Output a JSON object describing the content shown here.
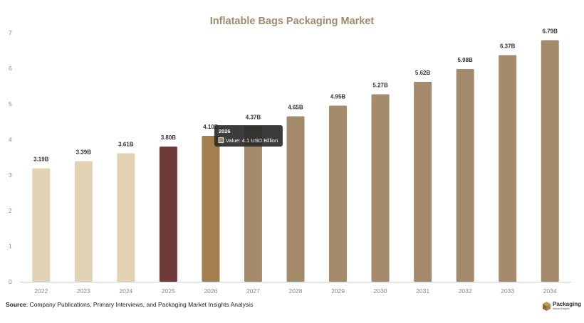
{
  "chart_data": {
    "type": "bar",
    "title": "Inflatable Bags Packaging Market",
    "categories": [
      "2022",
      "2023",
      "2024",
      "2025",
      "2026",
      "2027",
      "2028",
      "2029",
      "2030",
      "2031",
      "2032",
      "2033",
      "2034"
    ],
    "values": [
      3.19,
      3.39,
      3.61,
      3.8,
      4.1,
      4.37,
      4.65,
      4.95,
      5.27,
      5.62,
      5.98,
      6.37,
      6.79
    ],
    "value_labels": [
      "3.19B",
      "3.39B",
      "3.61B",
      "3.80B",
      "4.10B",
      "4.37B",
      "4.65B",
      "4.95B",
      "5.27B",
      "5.62B",
      "5.98B",
      "6.37B",
      "6.79B"
    ],
    "bar_colors": [
      "#e3d2b3",
      "#e3d2b3",
      "#e3d2b3",
      "#6f3a3a",
      "#a37f4f",
      "#a38b6c",
      "#a38b6c",
      "#a38b6c",
      "#a38b6c",
      "#a38b6c",
      "#a38b6c",
      "#a38b6c",
      "#a38b6c"
    ],
    "ylim": [
      0,
      7
    ],
    "y_ticks": [
      "0",
      "1",
      "2",
      "3",
      "4",
      "5",
      "6",
      "7"
    ],
    "grid": false,
    "tooltip": {
      "category_index": 4,
      "title": "2026",
      "text": "Value: 4.1 USD Billion",
      "swatch_color": "#a38b6c"
    }
  },
  "colors": {
    "title": "#a18a6b",
    "axis_text": "#8a8a8a",
    "label_text": "#333333",
    "axis_line": "#cccccc"
  },
  "footer": {
    "source_label": "Source",
    "source_text": ": Company Publications, Primary Interviews, and Packaging Market Insights Analysis",
    "logo_name": "Packaging",
    "logo_sub": "Market Insights",
    "logo_icon": "box-icon"
  }
}
